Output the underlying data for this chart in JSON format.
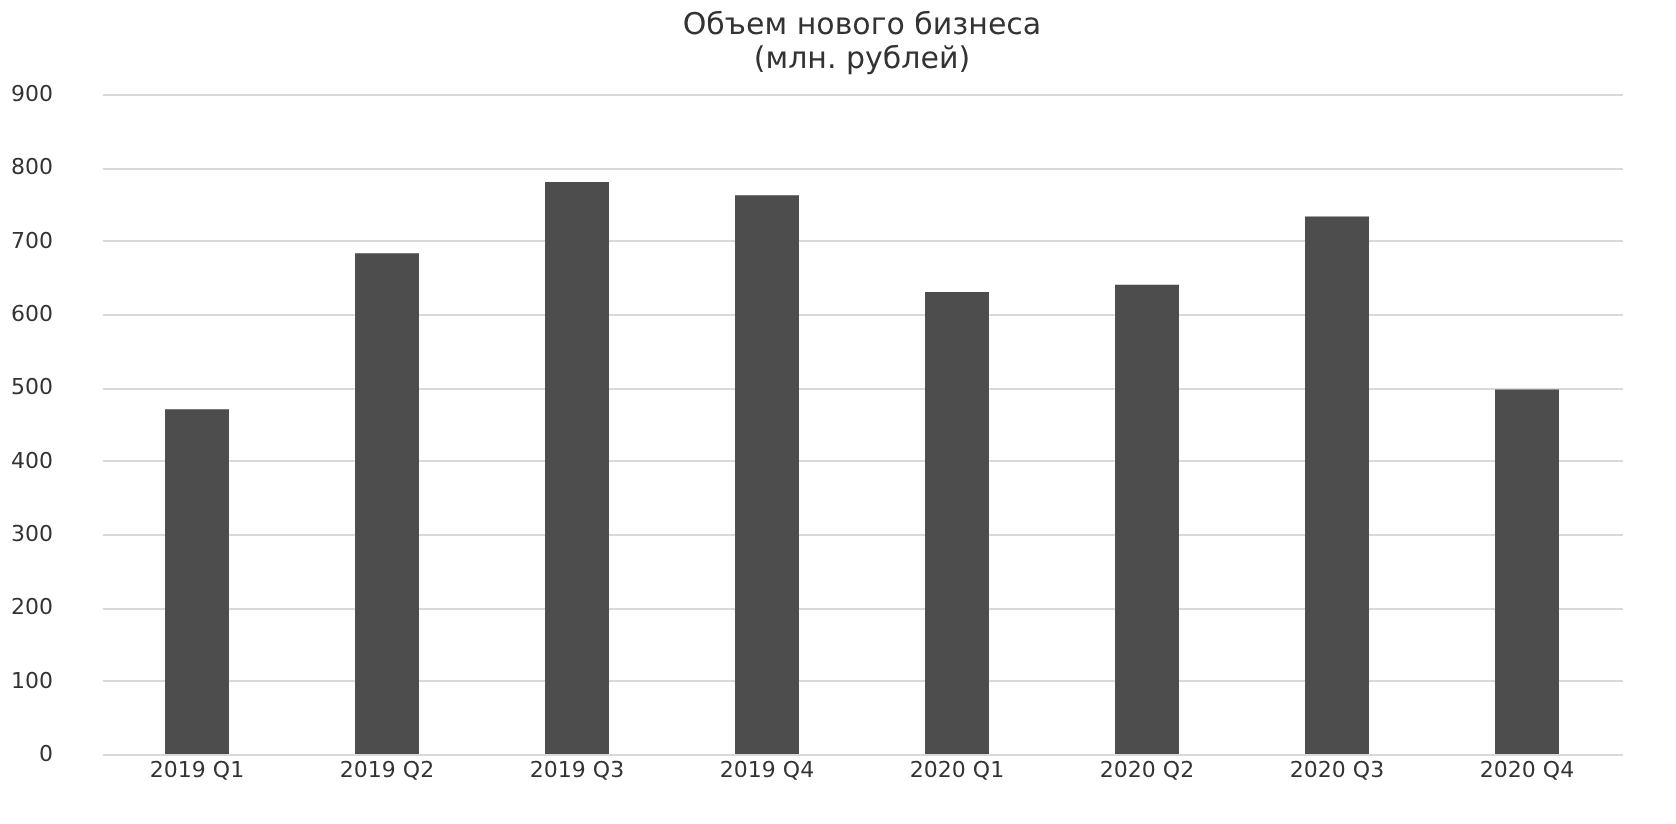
{
  "chart_data": {
    "type": "bar",
    "title": [
      "Объем нового бизнеса",
      "(млн. рублей)"
    ],
    "categories": [
      "2019 Q1",
      "2019 Q2",
      "2019 Q3",
      "2019 Q4",
      "2020 Q1",
      "2020 Q2",
      "2020 Q3",
      "2020 Q4"
    ],
    "values": [
      470,
      683,
      780,
      762,
      630,
      640,
      733,
      497
    ],
    "color": "#4d4d4d",
    "ylim": [
      0,
      900
    ],
    "yticks": [
      0,
      100,
      200,
      300,
      400,
      500,
      600,
      700,
      800,
      900
    ],
    "grid": "y"
  }
}
